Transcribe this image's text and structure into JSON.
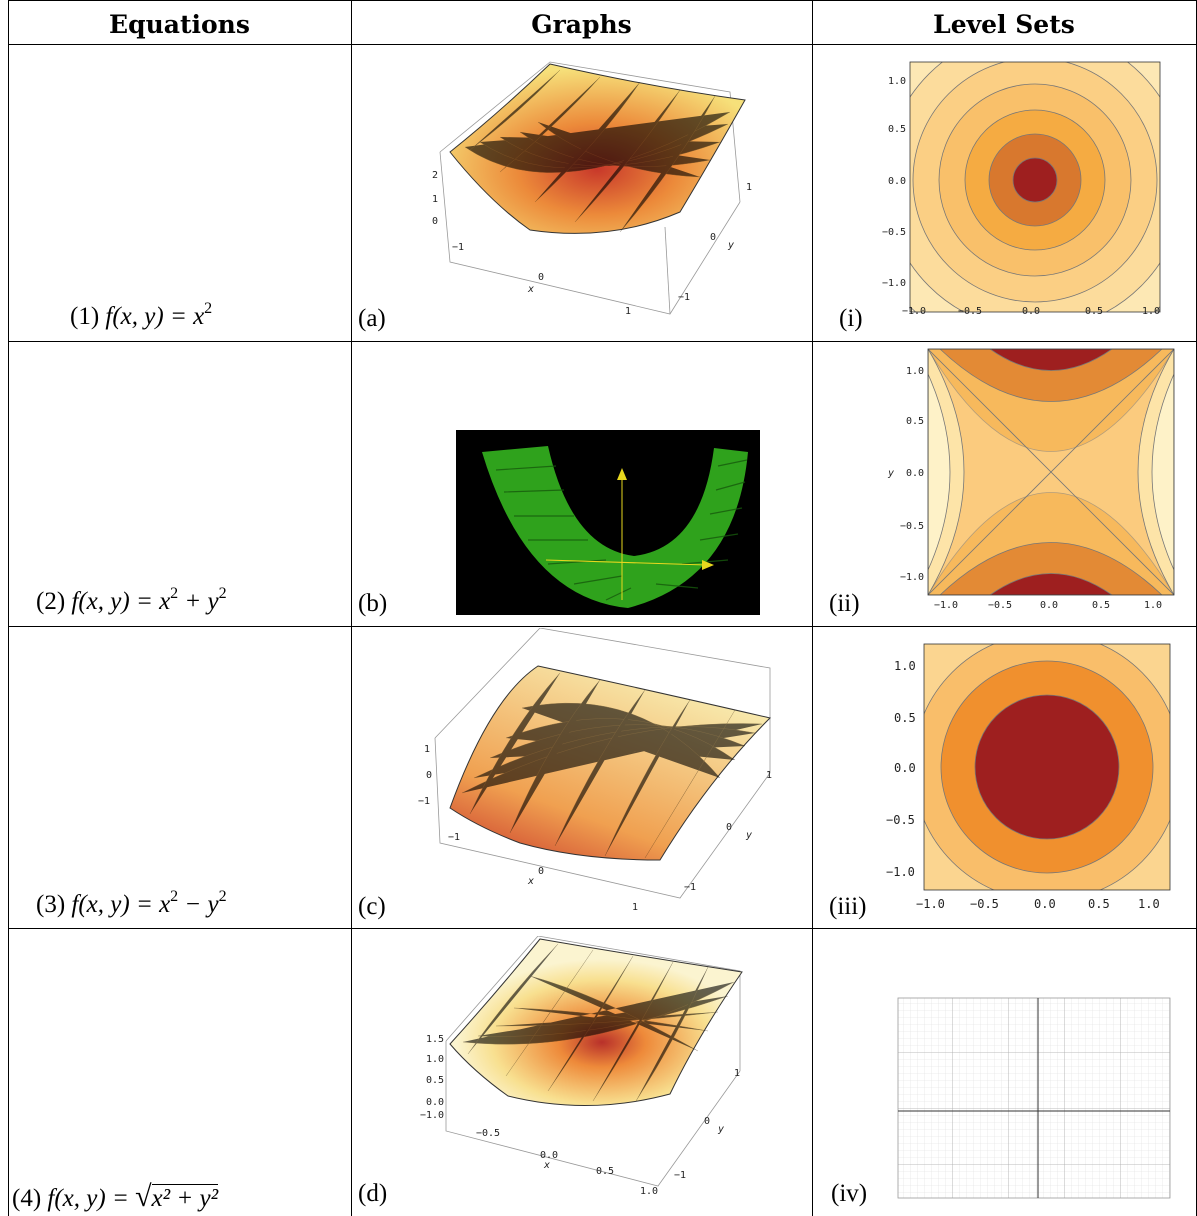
{
  "headers": {
    "equations": "Equations",
    "graphs": "Graphs",
    "level_sets": "Level Sets"
  },
  "rows": [
    {
      "eq_num": "(1)",
      "eq_lhs": "f(x, y) = x",
      "eq_rest": "",
      "graph_label": "(a)",
      "level_label": "(i)"
    },
    {
      "eq_num": "(2)",
      "eq_lhs": "f(x, y) = x",
      "eq_rest": " + y",
      "graph_label": "(b)",
      "level_label": "(ii)"
    },
    {
      "eq_num": "(3)",
      "eq_lhs": "f(x, y) = x",
      "eq_rest": " − y",
      "graph_label": "(c)",
      "level_label": "(iii)"
    },
    {
      "eq_num": "(4)",
      "eq_lhs": "f(x, y) = ",
      "eq_rest": "x² + y²",
      "graph_label": "(d)",
      "level_label": "(iv)"
    }
  ],
  "exponent": "2",
  "axis_ticks": {
    "contour": [
      "−1.0",
      "−0.5",
      "0.0",
      "0.5",
      "1.0"
    ],
    "surface_a_z": [
      "2",
      "1",
      "0"
    ],
    "surface_c_z": [
      "1",
      "0",
      "−1"
    ],
    "surface_d_z": [
      "1.5",
      "1.0",
      "0.5",
      "0.0"
    ],
    "surface_xy": [
      "−1",
      "0",
      "1"
    ],
    "surface_d_x": [
      "−1.0",
      "−0.5",
      "0.0",
      "0.5",
      "1.0"
    ],
    "axis_x": "x",
    "axis_y": "y"
  },
  "colors": {
    "dark_red": "#9e1f1f",
    "mid_orange": "#f29a2e",
    "light_orange": "#fbbe63",
    "pale_yellow": "#fde8a8",
    "green_surface": "#2fa21c",
    "axis_yellow": "#e8d81e"
  }
}
